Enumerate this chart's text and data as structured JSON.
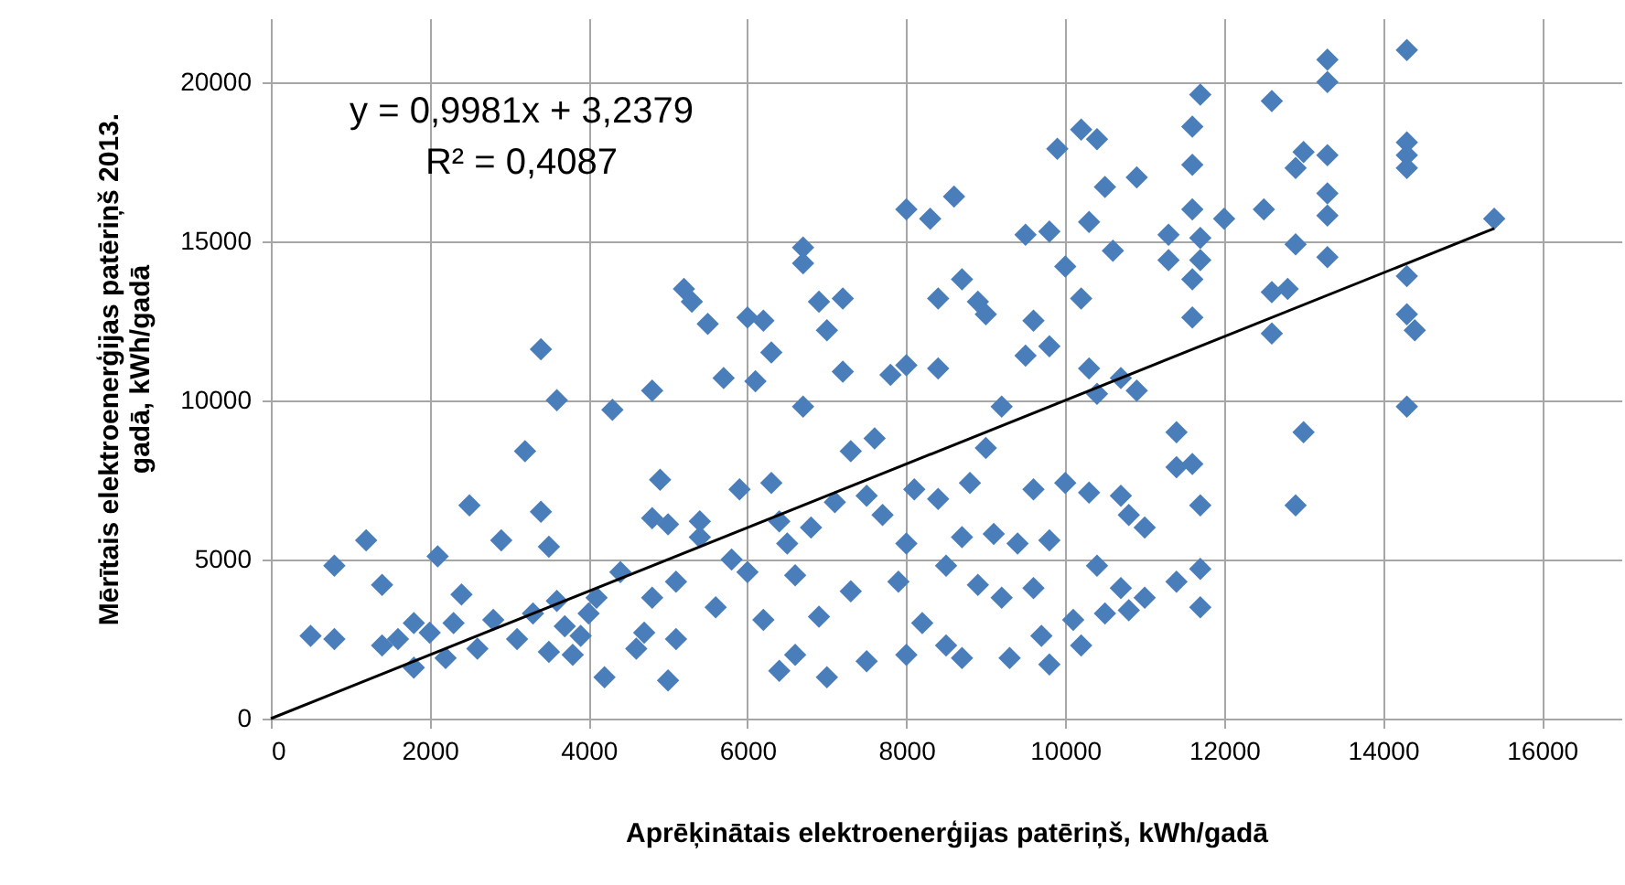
{
  "chart_data": {
    "type": "scatter",
    "xlabel": "Aprēķinātais elektroenerģijas patēriņš, kWh/gadā",
    "ylabel": "Mērītais elektroenerģijas patēriņš 2013. gadā, kWh/gadā",
    "annotations": [
      "y = 0,9981x + 3,2379",
      "R² = 0,4087"
    ],
    "xlim": [
      0,
      17000
    ],
    "ylim": [
      0,
      22000
    ],
    "xticks": [
      0,
      2000,
      4000,
      6000,
      8000,
      10000,
      12000,
      14000,
      16000
    ],
    "yticks": [
      0,
      5000,
      10000,
      15000,
      20000
    ],
    "grid": true,
    "series": [
      {
        "marker": "diamond",
        "color": "#4a7ebb",
        "x": [
          500,
          800,
          800,
          1200,
          1400,
          1400,
          1600,
          1800,
          1800,
          2000,
          2100,
          2200,
          2300,
          2400,
          2500,
          2600,
          2800,
          2900,
          3100,
          3200,
          3300,
          3400,
          3400,
          3500,
          3500,
          3600,
          3600,
          3700,
          3800,
          3900,
          4000,
          4100,
          4200,
          4300,
          4400,
          4600,
          4700,
          4800,
          4800,
          4800,
          4900,
          5000,
          5000,
          5100,
          5100,
          5200,
          5300,
          5400,
          5400,
          5500,
          5600,
          5700,
          5800,
          5900,
          6000,
          6000,
          6100,
          6200,
          6200,
          6300,
          6300,
          6400,
          6400,
          6500,
          6600,
          6600,
          6700,
          6700,
          6700,
          6800,
          6900,
          6900,
          7000,
          7000,
          7100,
          7200,
          7200,
          7300,
          7300,
          7500,
          7500,
          7600,
          7700,
          7800,
          7900,
          8000,
          8000,
          8000,
          8000,
          8100,
          8200,
          8300,
          8400,
          8400,
          8400,
          8500,
          8500,
          8600,
          8700,
          8700,
          8700,
          8800,
          8900,
          8900,
          9000,
          9000,
          9100,
          9200,
          9200,
          9300,
          9400,
          9500,
          9500,
          9600,
          9600,
          9600,
          9700,
          9800,
          9800,
          9800,
          9800,
          9900,
          10000,
          10000,
          10100,
          10200,
          10200,
          10200,
          10300,
          10300,
          10300,
          10400,
          10400,
          10400,
          10500,
          10500,
          10600,
          10700,
          10700,
          10700,
          10800,
          10800,
          10900,
          10900,
          11000,
          11000,
          11300,
          11300,
          11400,
          11400,
          11400,
          11600,
          11600,
          11600,
          11600,
          11600,
          11600,
          11700,
          11700,
          11700,
          11700,
          11700,
          11700,
          12000,
          12500,
          12600,
          12600,
          12600,
          12800,
          12900,
          12900,
          12900,
          13000,
          13000,
          13300,
          13300,
          13300,
          13300,
          13300,
          13300,
          14300,
          14300,
          14300,
          14300,
          14300,
          14300,
          14300,
          14400,
          15400
        ],
        "values": [
          2600,
          2500,
          4800,
          5600,
          4200,
          2300,
          2500,
          1600,
          3000,
          2700,
          5100,
          1900,
          3000,
          3900,
          6700,
          2200,
          3100,
          5600,
          2500,
          8400,
          3300,
          6500,
          11600,
          5400,
          2100,
          10000,
          3700,
          2900,
          2000,
          2600,
          3300,
          3800,
          1300,
          9700,
          4600,
          2200,
          2700,
          10300,
          6300,
          3800,
          7500,
          1200,
          6100,
          4300,
          2500,
          13500,
          13100,
          5700,
          6200,
          12400,
          3500,
          10700,
          5000,
          7200,
          12600,
          4600,
          10600,
          3100,
          12500,
          11500,
          7400,
          6200,
          1500,
          5500,
          4500,
          2000,
          14800,
          14300,
          9800,
          6000,
          13100,
          3200,
          12200,
          1300,
          6800,
          13200,
          10900,
          8400,
          4000,
          7000,
          1800,
          8800,
          6400,
          10800,
          4300,
          16000,
          11100,
          5500,
          2000,
          7200,
          3000,
          15700,
          13200,
          11000,
          6900,
          4800,
          2300,
          16400,
          13800,
          5700,
          1900,
          7400,
          13100,
          4200,
          12700,
          8500,
          5800,
          9800,
          3800,
          1900,
          5500,
          15200,
          11400,
          12500,
          7200,
          4100,
          2600,
          15300,
          11700,
          5600,
          1700,
          17900,
          14200,
          7400,
          3100,
          18500,
          13200,
          2300,
          15600,
          11000,
          7100,
          18200,
          10200,
          4800,
          16700,
          3300,
          14700,
          10700,
          7000,
          4100,
          6400,
          3400,
          17000,
          10300,
          6000,
          3800,
          15200,
          14400,
          9000,
          7900,
          4300,
          18600,
          17400,
          16000,
          13800,
          12600,
          8000,
          19600,
          15100,
          14400,
          6700,
          4700,
          3500,
          15700,
          16000,
          19400,
          13400,
          12100,
          13500,
          17300,
          14900,
          6700,
          17800,
          9000,
          20700,
          20000,
          17700,
          16500,
          15800,
          14500,
          21000,
          18100,
          17700,
          17300,
          13900,
          12700,
          9800,
          12200,
          15700
        ]
      },
      {
        "type": "line",
        "color": "#000000",
        "line_style": "solid",
        "x": [
          0,
          15400
        ],
        "values": [
          0,
          15400
        ]
      }
    ]
  }
}
